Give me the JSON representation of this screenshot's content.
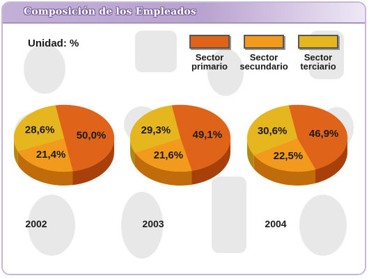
{
  "header": {
    "title": "Composición de los Empleados"
  },
  "unit_label": "Unidad: %",
  "legend": [
    {
      "line1": "Sector",
      "line2": "primario",
      "color": "#e0631a"
    },
    {
      "line1": "Sector",
      "line2": "secundario",
      "color": "#f29a1c"
    },
    {
      "line1": "Sector",
      "line2": "terciario",
      "color": "#e6b61e"
    }
  ],
  "chart_data": [
    {
      "type": "pie",
      "title": "2002",
      "categories": [
        "Sector primario",
        "Sector secundario",
        "Sector terciario"
      ],
      "values": [
        50.0,
        21.4,
        28.6
      ],
      "labels": [
        "50,0%",
        "21,4%",
        "28,6%"
      ]
    },
    {
      "type": "pie",
      "title": "2003",
      "categories": [
        "Sector primario",
        "Sector secundario",
        "Sector terciario"
      ],
      "values": [
        49.1,
        21.6,
        29.3
      ],
      "labels": [
        "49,1%",
        "21,6%",
        "29,3%"
      ]
    },
    {
      "type": "pie",
      "title": "2004",
      "categories": [
        "Sector primario",
        "Sector secundario",
        "Sector terciario"
      ],
      "values": [
        46.9,
        22.5,
        30.6
      ],
      "labels": [
        "46,9%",
        "22,5%",
        "30,6%"
      ]
    }
  ],
  "colors": {
    "primario": "#e0631a",
    "primario_side": "#a8400c",
    "secundario": "#f29a1c",
    "secundario_side": "#c06c0a",
    "terciario": "#e6b61e",
    "terciario_side": "#b08812"
  }
}
